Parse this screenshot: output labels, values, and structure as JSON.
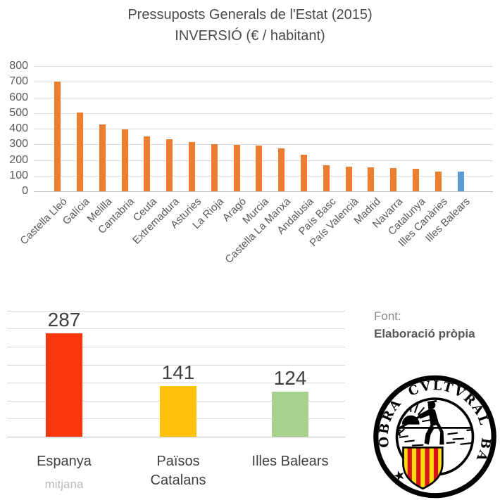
{
  "header": {
    "title": "Pressuposts Generals de l'Estat (2015)",
    "subtitle": "INVERSIÓ (€ / habitant)"
  },
  "chart_data": [
    {
      "type": "bar",
      "title": "Pressuposts Generals de l'Estat (2015) INVERSIÓ (€ / habitant)",
      "categories": [
        "Castella Lleó",
        "Galícia",
        "Melilla",
        "Cantabria",
        "Ceuta",
        "Extremadura",
        "Asturies",
        "La Rioja",
        "Aragó",
        "Murcia",
        "Castella La Manxa",
        "Andalusia",
        "País Basc",
        "País Valencià",
        "Madrid",
        "Navarra",
        "Catalunya",
        "Illes Canàries",
        "Illes Balears"
      ],
      "values": [
        700,
        505,
        425,
        395,
        350,
        333,
        314,
        303,
        298,
        292,
        275,
        235,
        166,
        156,
        153,
        148,
        145,
        127,
        124
      ],
      "xlabel": "",
      "ylabel": "",
      "ylim": [
        0,
        800
      ],
      "ytick_interval": 100,
      "grid": true,
      "bar_color": "#ED7D31",
      "highlight_index": 18,
      "highlight_color": "#5B9BD5"
    },
    {
      "type": "bar",
      "categories": [
        "Espanya",
        "Països Catalans",
        "Illes Balears"
      ],
      "values": [
        287,
        141,
        124
      ],
      "data_labels": [
        "287",
        "141",
        "124"
      ],
      "colors": [
        "#F8380A",
        "#FFC10A",
        "#A9D18E"
      ],
      "ylim": [
        0,
        350
      ],
      "ytick_interval": 50,
      "grid": true,
      "sub_label": {
        "category": "Espanya",
        "text": "mitjana"
      }
    }
  ],
  "footer": {
    "font_label": "Font:",
    "font_value": "Elaboració pròpia"
  },
  "logo": {
    "ring_text": "OBRA CVLTVRAL BALEAR",
    "star": "★",
    "shield_yellow": "#FCDD09",
    "shield_red": "#DA121A",
    "ink": "#000000"
  }
}
